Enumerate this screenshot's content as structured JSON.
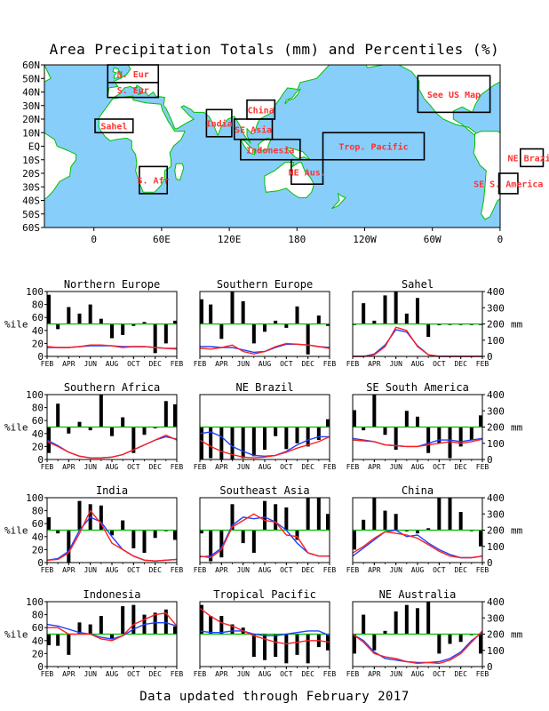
{
  "title": "Area Precipitation Totals (mm) and Percentiles (%)",
  "footer": "Data updated through February 2017",
  "colors": {
    "ocean": "#87CEFA",
    "land": "#ffffff",
    "coast": "#00c000",
    "region_label": "#ff3333",
    "red_line": "#ff2020",
    "blue_line": "#2040ff",
    "green_line": "#00bb00",
    "bar": "#000000"
  },
  "map": {
    "lat_labels": [
      "60N",
      "50N",
      "40N",
      "30N",
      "20N",
      "10N",
      "EQ",
      "10S",
      "20S",
      "30S",
      "40S",
      "50S",
      "60S"
    ],
    "lon_labels": [
      "0",
      "60E",
      "120E",
      "180",
      "120W",
      "60W",
      "0"
    ],
    "regions": [
      {
        "label": "N. Eur",
        "lon": [
          -10,
          30
        ],
        "lat": [
          47,
          60
        ]
      },
      {
        "label": "S. Eur",
        "lon": [
          -10,
          30
        ],
        "lat": [
          36,
          47
        ]
      },
      {
        "label": "Sahel",
        "lon": [
          -20,
          10
        ],
        "lat": [
          10,
          20
        ]
      },
      {
        "label": "India",
        "lon": [
          68,
          88
        ],
        "lat": [
          7,
          27
        ]
      },
      {
        "label": "China",
        "lon": [
          100,
          122
        ],
        "lat": [
          20,
          34
        ]
      },
      {
        "label": "SE Asia",
        "lon": [
          90,
          120
        ],
        "lat": [
          5,
          20
        ]
      },
      {
        "label": "Indonesia",
        "lon": [
          95,
          142
        ],
        "lat": [
          -10,
          5
        ]
      },
      {
        "label": "Trop. Pacific",
        "lon": [
          160,
          240
        ],
        "lat": [
          -10,
          10
        ]
      },
      {
        "label": "NE Aus.",
        "lon": [
          135,
          160
        ],
        "lat": [
          -28,
          -10
        ]
      },
      {
        "label": "S. Afr",
        "lon": [
          15,
          37
        ],
        "lat": [
          -35,
          -15
        ]
      },
      {
        "label": "See US Map",
        "lon": [
          235,
          292
        ],
        "lat": [
          25,
          52
        ]
      },
      {
        "label": "NE Brazil",
        "lon": [
          316,
          334
        ],
        "lat": [
          -15,
          -2
        ]
      },
      {
        "label": "SE S. America",
        "lon": [
          299,
          314
        ],
        "lat": [
          -35,
          -20
        ]
      }
    ]
  },
  "axis": {
    "pct_ylabel": "%ile",
    "mm_ylabel": "mm",
    "pct_ticks": [
      "0",
      "20",
      "40",
      "60",
      "80",
      "100"
    ],
    "mm_ticks": [
      "0",
      "100",
      "200",
      "300",
      "400"
    ],
    "x_ticks": [
      "FEB",
      "APR",
      "JUN",
      "AUG",
      "OCT",
      "DEC",
      "FEB"
    ]
  },
  "chart_data": [
    {
      "type": "bar",
      "title": "Northern Europe",
      "ylim": [
        0,
        100
      ],
      "mm_ylim": [
        0,
        400
      ],
      "percentiles": [
        95,
        42,
        76,
        66,
        80,
        58,
        28,
        33,
        47,
        53,
        5,
        20,
        55
      ],
      "red_mm": [
        60,
        55,
        55,
        60,
        70,
        70,
        65,
        55,
        60,
        60,
        55,
        50,
        45
      ],
      "blue_mm": [
        55,
        55,
        55,
        60,
        65,
        65,
        65,
        60,
        60,
        60,
        55,
        50,
        50
      ]
    },
    {
      "type": "bar",
      "title": "Southern Europe",
      "ylim": [
        0,
        100
      ],
      "mm_ylim": [
        0,
        400
      ],
      "percentiles": [
        88,
        80,
        27,
        100,
        85,
        20,
        38,
        55,
        44,
        77,
        3,
        63,
        47
      ],
      "red_mm": [
        50,
        45,
        55,
        70,
        30,
        15,
        30,
        60,
        80,
        75,
        70,
        60,
        50
      ],
      "blue_mm": [
        60,
        60,
        55,
        55,
        40,
        25,
        30,
        55,
        75,
        75,
        70,
        60,
        55
      ]
    },
    {
      "type": "bar",
      "title": "Sahel",
      "ylim": [
        0,
        100
      ],
      "mm_ylim": [
        0,
        400
      ],
      "percentiles": [
        50,
        82,
        55,
        94,
        100,
        66,
        90,
        30,
        48,
        50,
        50,
        50,
        50
      ],
      "red_mm": [
        0,
        0,
        10,
        60,
        180,
        160,
        60,
        10,
        0,
        0,
        0,
        0,
        0
      ],
      "blue_mm": [
        0,
        0,
        15,
        70,
        165,
        150,
        65,
        10,
        0,
        0,
        0,
        0,
        0
      ]
    },
    {
      "type": "bar",
      "title": "Southern Africa",
      "ylim": [
        0,
        100
      ],
      "mm_ylim": [
        0,
        400
      ],
      "percentiles": [
        10,
        86,
        40,
        58,
        45,
        100,
        36,
        65,
        10,
        38,
        48,
        90,
        85
      ],
      "red_mm": [
        110,
        80,
        45,
        20,
        10,
        10,
        15,
        30,
        60,
        90,
        120,
        150,
        120
      ],
      "blue_mm": [
        120,
        85,
        45,
        20,
        10,
        10,
        15,
        30,
        60,
        90,
        120,
        140,
        125
      ]
    },
    {
      "type": "bar",
      "title": "NE Brazil",
      "ylim": [
        0,
        100
      ],
      "mm_ylim": [
        0,
        400
      ],
      "percentiles": [
        0,
        2,
        0,
        0,
        2,
        5,
        15,
        36,
        16,
        25,
        20,
        30,
        62
      ],
      "red_mm": [
        120,
        80,
        50,
        30,
        15,
        10,
        15,
        25,
        45,
        70,
        90,
        110,
        140
      ],
      "blue_mm": [
        160,
        170,
        140,
        80,
        50,
        25,
        20,
        25,
        50,
        90,
        120,
        140,
        140
      ]
    },
    {
      "type": "bar",
      "title": "SE South America",
      "ylim": [
        0,
        100
      ],
      "mm_ylim": [
        0,
        400
      ],
      "percentiles": [
        76,
        45,
        100,
        38,
        15,
        75,
        66,
        10,
        25,
        2,
        20,
        30,
        68
      ],
      "red_mm": [
        120,
        115,
        110,
        90,
        85,
        80,
        80,
        90,
        100,
        110,
        100,
        110,
        125
      ],
      "blue_mm": [
        130,
        120,
        110,
        90,
        85,
        80,
        80,
        100,
        120,
        120,
        110,
        120,
        130
      ]
    },
    {
      "type": "bar",
      "title": "India",
      "ylim": [
        0,
        100
      ],
      "mm_ylim": [
        0,
        400
      ],
      "percentiles": [
        70,
        45,
        0,
        95,
        90,
        88,
        42,
        65,
        22,
        15,
        38,
        50,
        35
      ],
      "red_mm": [
        15,
        20,
        60,
        180,
        320,
        240,
        120,
        80,
        40,
        15,
        10,
        15,
        20
      ],
      "blue_mm": [
        15,
        25,
        70,
        200,
        280,
        250,
        160,
        80,
        40,
        15,
        10,
        15,
        20
      ]
    },
    {
      "type": "bar",
      "title": "Southeast Asia",
      "ylim": [
        0,
        100
      ],
      "mm_ylim": [
        0,
        400
      ],
      "percentiles": [
        45,
        2,
        8,
        90,
        30,
        15,
        95,
        90,
        85,
        35,
        100,
        100,
        75
      ],
      "red_mm": [
        40,
        30,
        80,
        220,
        260,
        300,
        260,
        250,
        170,
        160,
        60,
        40,
        40
      ],
      "blue_mm": [
        35,
        40,
        90,
        230,
        280,
        270,
        280,
        250,
        200,
        120,
        60,
        40,
        40
      ]
    },
    {
      "type": "bar",
      "title": "China",
      "ylim": [
        0,
        100
      ],
      "mm_ylim": [
        0,
        400
      ],
      "percentiles": [
        20,
        66,
        100,
        80,
        75,
        48,
        45,
        53,
        100,
        100,
        78,
        50,
        25
      ],
      "red_mm": [
        60,
        100,
        150,
        190,
        180,
        170,
        150,
        110,
        70,
        40,
        30,
        30,
        40
      ],
      "blue_mm": [
        40,
        90,
        140,
        190,
        200,
        160,
        170,
        120,
        80,
        50,
        30,
        30,
        40
      ]
    },
    {
      "type": "bar",
      "title": "Indonesia",
      "ylim": [
        0,
        100
      ],
      "mm_ylim": [
        0,
        400
      ],
      "percentiles": [
        33,
        32,
        18,
        68,
        65,
        78,
        42,
        93,
        95,
        80,
        83,
        88,
        62
      ],
      "red_mm": [
        240,
        240,
        200,
        200,
        200,
        170,
        160,
        190,
        260,
        290,
        320,
        330,
        250
      ],
      "blue_mm": [
        260,
        250,
        230,
        210,
        200,
        180,
        170,
        190,
        230,
        260,
        270,
        270,
        250
      ]
    },
    {
      "type": "bar",
      "title": "Tropical Pacific",
      "ylim": [
        0,
        100
      ],
      "mm_ylim": [
        0,
        400
      ],
      "percentiles": [
        95,
        78,
        78,
        65,
        60,
        15,
        10,
        15,
        5,
        18,
        5,
        30,
        25
      ],
      "red_mm": [
        360,
        310,
        270,
        250,
        220,
        190,
        170,
        150,
        140,
        150,
        160,
        160,
        150
      ],
      "blue_mm": [
        220,
        210,
        210,
        220,
        220,
        200,
        190,
        190,
        200,
        210,
        220,
        220,
        190
      ]
    },
    {
      "type": "bar",
      "title": "NE Australia",
      "ylim": [
        0,
        100
      ],
      "mm_ylim": [
        0,
        400
      ],
      "percentiles": [
        20,
        80,
        25,
        55,
        85,
        95,
        90,
        100,
        20,
        35,
        38,
        50,
        20
      ],
      "red_mm": [
        200,
        150,
        80,
        60,
        50,
        30,
        20,
        25,
        20,
        40,
        80,
        150,
        220
      ],
      "blue_mm": [
        200,
        160,
        90,
        50,
        40,
        30,
        25,
        25,
        30,
        50,
        90,
        160,
        210
      ]
    }
  ]
}
